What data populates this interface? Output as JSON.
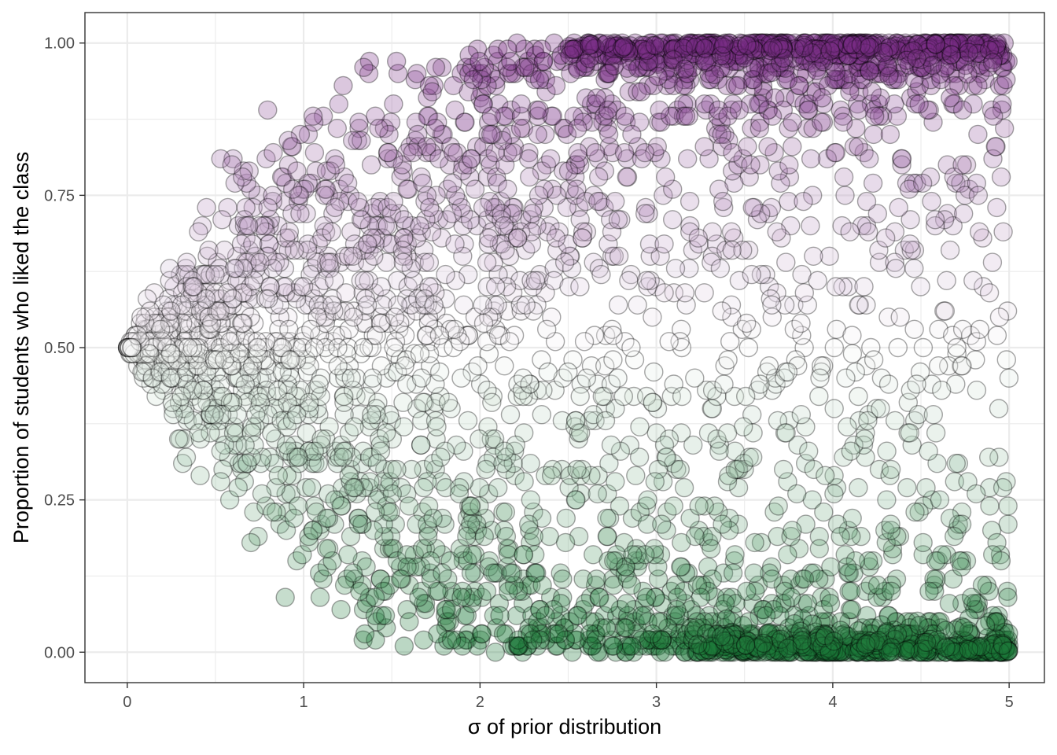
{
  "chart_data": {
    "type": "scatter",
    "title": "",
    "xlabel": "σ of prior distribution",
    "ylabel": "Proportion of students who liked the class",
    "xlim": [
      -0.24,
      5.2
    ],
    "ylim": [
      -0.05,
      1.05
    ],
    "x_ticks": [
      0,
      1,
      2,
      3,
      4,
      5
    ],
    "x_tick_labels": [
      "0",
      "1",
      "2",
      "3",
      "4",
      "5"
    ],
    "y_ticks": [
      0,
      0.25,
      0.5,
      0.75,
      1
    ],
    "y_tick_labels": [
      "0.00",
      "0.25",
      "0.50",
      "0.75",
      "1.00"
    ],
    "grid": true,
    "legend": "none",
    "color_scale": {
      "low": "#1b7837",
      "mid": "#f7f7f7",
      "high": "#762a83",
      "mapped_to": "y"
    },
    "point_style": {
      "alpha": 0.3,
      "outline": "#000000"
    },
    "point_sampling": {
      "count": 3200,
      "x_range": [
        0,
        5
      ],
      "clusters": [
        {
          "x_min": 2.5,
          "y": 1.0,
          "count": 260
        },
        {
          "x_min": 3.2,
          "y": 0.0,
          "count": 260
        }
      ]
    }
  }
}
